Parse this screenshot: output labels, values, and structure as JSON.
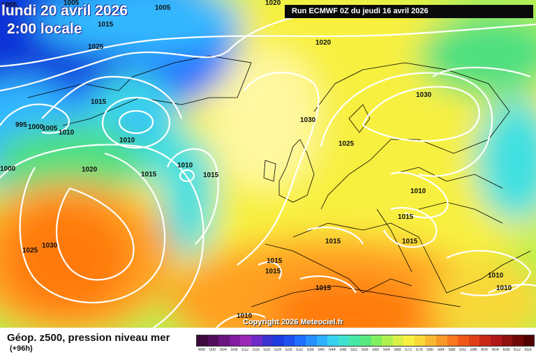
{
  "header": {
    "valid_date": "lundi 20 avril 2026",
    "valid_time": "2:00 locale",
    "run": "Run ECMWF 0Z du jeudi 16 avril 2026"
  },
  "footer": {
    "title": "Géop. z500, pression niveau mer",
    "lead_time": "(+96h)",
    "copyright": "Copyright 2026 Meteociel.fr"
  },
  "colors": {
    "ocean_deep_blue": "#1030d8",
    "blue": "#2070ff",
    "light_blue": "#30b8ff",
    "cyan": "#40e0e0",
    "green": "#50e080",
    "yellow_green": "#b8f050",
    "yellow": "#f8f040",
    "pale_yellow": "#fff8a0",
    "orange": "#ffa020",
    "deep_orange": "#ff7a10",
    "isobar": "#ffffff",
    "coastline": "#000000"
  },
  "scale": {
    "ticks": [
      "496",
      "500",
      "504",
      "508",
      "512",
      "516",
      "520",
      "524",
      "528",
      "532",
      "536",
      "540",
      "544",
      "548",
      "552",
      "556",
      "560",
      "564",
      "568",
      "572",
      "576",
      "580",
      "584",
      "588",
      "592",
      "596",
      "600",
      "604",
      "608",
      "612",
      "616"
    ],
    "colors": [
      "#3c0a3c",
      "#500e5a",
      "#6a1480",
      "#841aa0",
      "#9c28b8",
      "#6e2ac8",
      "#3c32d0",
      "#1e3ce0",
      "#1e50f0",
      "#1e6eff",
      "#2890ff",
      "#30b0ff",
      "#38d0f0",
      "#40e0d0",
      "#48e8a8",
      "#58e880",
      "#80f060",
      "#b0f050",
      "#d8f048",
      "#f8f040",
      "#f8d838",
      "#f8b830",
      "#f89828",
      "#f87820",
      "#f05818",
      "#e04018",
      "#c82818",
      "#b01818",
      "#901010",
      "#700808",
      "#500000"
    ]
  },
  "isobar_labels": [
    "1005",
    "1005",
    "1005",
    "1015",
    "1025",
    "1020",
    "1020",
    "1030",
    "1015",
    "1030",
    "995",
    "1000",
    "1005",
    "1010",
    "1010",
    "1015",
    "1025",
    "1020",
    "1010",
    "1015",
    "1010",
    "1015",
    "1000",
    "1025",
    "1030",
    "1015",
    "1015",
    "1015",
    "1015",
    "1010",
    "1015",
    "1010",
    "1010"
  ]
}
